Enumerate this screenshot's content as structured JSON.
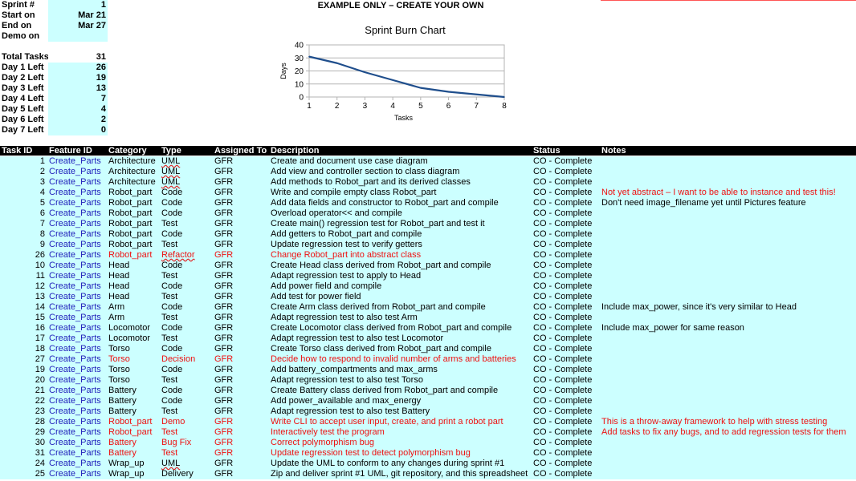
{
  "summary": {
    "sprint_label": "Sprint #",
    "sprint_value": "1",
    "start_label": "Start on",
    "start_value": "Mar 21",
    "end_label": "End on",
    "end_value": "Mar 27",
    "demo_label": "Demo on",
    "demo_value": "",
    "total_label": "Total Tasks",
    "total_value": "31",
    "days": [
      {
        "label": "Day 1 Left",
        "value": "26"
      },
      {
        "label": "Day 2 Left",
        "value": "19"
      },
      {
        "label": "Day 3 Left",
        "value": "13"
      },
      {
        "label": "Day 4 Left",
        "value": "7"
      },
      {
        "label": "Day 5 Left",
        "value": "4"
      },
      {
        "label": "Day 6 Left",
        "value": "2"
      },
      {
        "label": "Day 7 Left",
        "value": "0"
      }
    ]
  },
  "banner": "EXAMPLE ONLY – CREATE YOUR OWN",
  "chart_data": {
    "type": "line",
    "title": "Sprint Burn Chart",
    "xlabel": "Tasks",
    "ylabel": "Days",
    "x": [
      1,
      2,
      3,
      4,
      5,
      6,
      7,
      8
    ],
    "series": [
      {
        "values": [
          31,
          26,
          19,
          13,
          7,
          4,
          2,
          0
        ]
      }
    ],
    "xlim": [
      1,
      8
    ],
    "ylim": [
      0,
      40
    ],
    "yticks": [
      0,
      10,
      20,
      30,
      40
    ],
    "grid": true,
    "color": "#1f4e8c"
  },
  "table": {
    "headers": [
      "Task ID",
      "Feature ID",
      "Category",
      "Type",
      "Assigned To",
      "Description",
      "Status",
      "Notes"
    ],
    "rows": [
      {
        "id": "1",
        "feature": "Create_Parts",
        "category": "Architecture",
        "type": "UML",
        "assigned": "GFR",
        "description": "Create and document use case diagram",
        "status": "CO - Complete",
        "notes": "",
        "red": false,
        "note_red": false
      },
      {
        "id": "2",
        "feature": "Create_Parts",
        "category": "Architecture",
        "type": "UML",
        "assigned": "GFR",
        "description": "Add view and controller section to class diagram",
        "status": "CO - Complete",
        "notes": "",
        "red": false,
        "note_red": false
      },
      {
        "id": "3",
        "feature": "Create_Parts",
        "category": "Architecture",
        "type": "UML",
        "assigned": "GFR",
        "description": "Add methods to Robot_part and its derived classes",
        "status": "CO - Complete",
        "notes": "",
        "red": false,
        "note_red": false
      },
      {
        "id": "4",
        "feature": "Create_Parts",
        "category": "Robot_part",
        "type": "Code",
        "assigned": "GFR",
        "description": "Write and compile empty class Robot_part",
        "status": "CO - Complete",
        "notes": "Not yet abstract – I want to be able to instance and test this!",
        "red": false,
        "note_red": true
      },
      {
        "id": "5",
        "feature": "Create_Parts",
        "category": "Robot_part",
        "type": "Code",
        "assigned": "GFR",
        "description": "Add data fields and constructor to Robot_part and compile",
        "status": "CO - Complete",
        "notes": "Don't need image_filename yet until Pictures feature",
        "red": false,
        "note_red": false
      },
      {
        "id": "6",
        "feature": "Create_Parts",
        "category": "Robot_part",
        "type": "Code",
        "assigned": "GFR",
        "description": "Overload operator<< and compile",
        "status": "CO - Complete",
        "notes": "",
        "red": false,
        "note_red": false
      },
      {
        "id": "7",
        "feature": "Create_Parts",
        "category": "Robot_part",
        "type": "Test",
        "assigned": "GFR",
        "description": "Create main() regression test for Robot_part and test it",
        "status": "CO - Complete",
        "notes": "",
        "red": false,
        "note_red": false
      },
      {
        "id": "8",
        "feature": "Create_Parts",
        "category": "Robot_part",
        "type": "Code",
        "assigned": "GFR",
        "description": "Add getters to Robot_part and compile",
        "status": "CO - Complete",
        "notes": "",
        "red": false,
        "note_red": false
      },
      {
        "id": "9",
        "feature": "Create_Parts",
        "category": "Robot_part",
        "type": "Test",
        "assigned": "GFR",
        "description": "Update regression test to verify getters",
        "status": "CO - Complete",
        "notes": "",
        "red": false,
        "note_red": false
      },
      {
        "id": "26",
        "feature": "Create_Parts",
        "category": "Robot_part",
        "type": "Refactor",
        "assigned": "GFR",
        "description": "Change Robot_part into abstract class",
        "status": "CO - Complete",
        "notes": "",
        "red": true,
        "note_red": false
      },
      {
        "id": "10",
        "feature": "Create_Parts",
        "category": "Head",
        "type": "Code",
        "assigned": "GFR",
        "description": "Create Head class derived from Robot_part and compile",
        "status": "CO - Complete",
        "notes": "",
        "red": false,
        "note_red": false
      },
      {
        "id": "11",
        "feature": "Create_Parts",
        "category": "Head",
        "type": "Test",
        "assigned": "GFR",
        "description": "Adapt regression test to apply to Head",
        "status": "CO - Complete",
        "notes": "",
        "red": false,
        "note_red": false
      },
      {
        "id": "12",
        "feature": "Create_Parts",
        "category": "Head",
        "type": "Code",
        "assigned": "GFR",
        "description": "Add power field and compile",
        "status": "CO - Complete",
        "notes": "",
        "red": false,
        "note_red": false
      },
      {
        "id": "13",
        "feature": "Create_Parts",
        "category": "Head",
        "type": "Test",
        "assigned": "GFR",
        "description": "Add test for power field",
        "status": "CO - Complete",
        "notes": "",
        "red": false,
        "note_red": false
      },
      {
        "id": "14",
        "feature": "Create_Parts",
        "category": "Arm",
        "type": "Code",
        "assigned": "GFR",
        "description": "Create Arm class derived from Robot_part and compile",
        "status": "CO - Complete",
        "notes": "Include max_power, since it's very similar to Head",
        "red": false,
        "note_red": false
      },
      {
        "id": "15",
        "feature": "Create_Parts",
        "category": "Arm",
        "type": "Test",
        "assigned": "GFR",
        "description": "Adapt regression test to also test Arm",
        "status": "CO - Complete",
        "notes": "",
        "red": false,
        "note_red": false
      },
      {
        "id": "16",
        "feature": "Create_Parts",
        "category": "Locomotor",
        "type": "Code",
        "assigned": "GFR",
        "description": "Create Locomotor class derived from Robot_part and compile",
        "status": "CO - Complete",
        "notes": "Include max_power for same reason",
        "red": false,
        "note_red": false
      },
      {
        "id": "17",
        "feature": "Create_Parts",
        "category": "Locomotor",
        "type": "Test",
        "assigned": "GFR",
        "description": "Adapt regression test to also test Locomotor",
        "status": "CO - Complete",
        "notes": "",
        "red": false,
        "note_red": false
      },
      {
        "id": "18",
        "feature": "Create_Parts",
        "category": "Torso",
        "type": "Code",
        "assigned": "GFR",
        "description": "Create Torso class derived from Robot_part and compile",
        "status": "CO - Complete",
        "notes": "",
        "red": false,
        "note_red": false
      },
      {
        "id": "27",
        "feature": "Create_Parts",
        "category": "Torso",
        "type": "Decision",
        "assigned": "GFR",
        "description": "Decide how to respond to invalid number of arms and batteries",
        "status": "CO - Complete",
        "notes": "",
        "red": true,
        "note_red": false
      },
      {
        "id": "19",
        "feature": "Create_Parts",
        "category": "Torso",
        "type": "Code",
        "assigned": "GFR",
        "description": "Add battery_compartments and max_arms",
        "status": "CO - Complete",
        "notes": "",
        "red": false,
        "note_red": false
      },
      {
        "id": "20",
        "feature": "Create_Parts",
        "category": "Torso",
        "type": "Test",
        "assigned": "GFR",
        "description": "Adapt regression test to also test Torso",
        "status": "CO - Complete",
        "notes": "",
        "red": false,
        "note_red": false
      },
      {
        "id": "21",
        "feature": "Create_Parts",
        "category": "Battery",
        "type": "Code",
        "assigned": "GFR",
        "description": "Create Battery class derived from Robot_part and compile",
        "status": "CO - Complete",
        "notes": "",
        "red": false,
        "note_red": false
      },
      {
        "id": "22",
        "feature": "Create_Parts",
        "category": "Battery",
        "type": "Code",
        "assigned": "GFR",
        "description": "Add power_available and max_energy",
        "status": "CO - Complete",
        "notes": "",
        "red": false,
        "note_red": false
      },
      {
        "id": "23",
        "feature": "Create_Parts",
        "category": "Battery",
        "type": "Test",
        "assigned": "GFR",
        "description": "Adapt regression test to also test Battery",
        "status": "CO - Complete",
        "notes": "",
        "red": false,
        "note_red": false
      },
      {
        "id": "28",
        "feature": "Create_Parts",
        "category": "Robot_part",
        "type": "Demo",
        "assigned": "GFR",
        "description": "Write CLI to accept user input, create, and print a robot part",
        "status": "CO - Complete",
        "notes": "This is a throw-away framework to help with stress testing",
        "red": true,
        "note_red": true
      },
      {
        "id": "29",
        "feature": "Create_Parts",
        "category": "Robot_part",
        "type": "Test",
        "assigned": "GFR",
        "description": "Interactively test the program",
        "status": "CO - Complete",
        "notes": "Add tasks to fix any bugs, and to add regression tests for them",
        "red": true,
        "note_red": true
      },
      {
        "id": "30",
        "feature": "Create_Parts",
        "category": "Battery",
        "type": "Bug Fix",
        "assigned": "GFR",
        "description": "Correct polymorphism bug",
        "status": "CO - Complete",
        "notes": "",
        "red": true,
        "note_red": false
      },
      {
        "id": "31",
        "feature": "Create_Parts",
        "category": "Battery",
        "type": "Test",
        "assigned": "GFR",
        "description": "Update regression test to detect polymorphism bug",
        "status": "CO - Complete",
        "notes": "",
        "red": true,
        "note_red": false
      },
      {
        "id": "24",
        "feature": "Create_Parts",
        "category": "Wrap_up",
        "type": "UML",
        "assigned": "GFR",
        "description": "Update the UML to conform to any changes during sprint #1",
        "status": "CO - Complete",
        "notes": "",
        "red": false,
        "note_red": false
      },
      {
        "id": "25",
        "feature": "Create_Parts",
        "category": "Wrap_up",
        "type": "Delivery",
        "assigned": "GFR",
        "description": "Zip and deliver sprint #1 UML, git repository, and this spreadsheet",
        "status": "CO - Complete",
        "notes": "",
        "red": false,
        "note_red": false
      }
    ]
  }
}
